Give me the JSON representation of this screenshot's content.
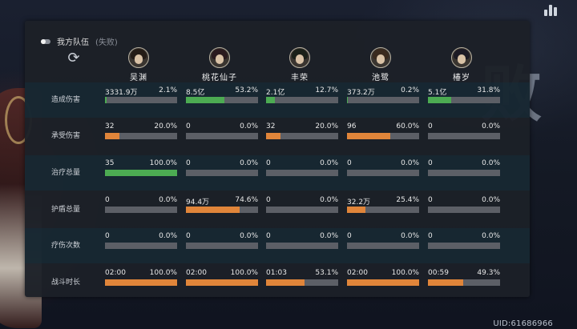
{
  "panel": {
    "title": "我方队伍",
    "result": "(失败)"
  },
  "uid": "UID:61686966",
  "background_char": "败",
  "colors": {
    "green": "#4cab52",
    "orange": "#e0853a",
    "track": "#5c5f66"
  },
  "heroes": [
    {
      "name": "吴渊",
      "icon": "hero-wuyuan-avatar"
    },
    {
      "name": "桃花仙子",
      "icon": "hero-taohuaxianzi-avatar"
    },
    {
      "name": "丰荣",
      "icon": "hero-fengrong-avatar"
    },
    {
      "name": "池鹭",
      "icon": "hero-chilu-avatar"
    },
    {
      "name": "椿岁",
      "icon": "hero-chunsui-avatar"
    }
  ],
  "rows": [
    {
      "label": "造成伤害",
      "color": "green",
      "cells": [
        {
          "value": "3331.9万",
          "percent": "2.1%",
          "fraction": 0.021
        },
        {
          "value": "8.5亿",
          "percent": "53.2%",
          "fraction": 0.532
        },
        {
          "value": "2.1亿",
          "percent": "12.7%",
          "fraction": 0.127
        },
        {
          "value": "373.2万",
          "percent": "0.2%",
          "fraction": 0.002
        },
        {
          "value": "5.1亿",
          "percent": "31.8%",
          "fraction": 0.318
        }
      ]
    },
    {
      "label": "承受伤害",
      "color": "orange",
      "cells": [
        {
          "value": "32",
          "percent": "20.0%",
          "fraction": 0.2
        },
        {
          "value": "0",
          "percent": "0.0%",
          "fraction": 0
        },
        {
          "value": "32",
          "percent": "20.0%",
          "fraction": 0.2
        },
        {
          "value": "96",
          "percent": "60.0%",
          "fraction": 0.6
        },
        {
          "value": "0",
          "percent": "0.0%",
          "fraction": 0
        }
      ]
    },
    {
      "label": "治疗总量",
      "color": "green",
      "cells": [
        {
          "value": "35",
          "percent": "100.0%",
          "fraction": 1.0
        },
        {
          "value": "0",
          "percent": "0.0%",
          "fraction": 0
        },
        {
          "value": "0",
          "percent": "0.0%",
          "fraction": 0
        },
        {
          "value": "0",
          "percent": "0.0%",
          "fraction": 0
        },
        {
          "value": "0",
          "percent": "0.0%",
          "fraction": 0
        }
      ]
    },
    {
      "label": "护盾总量",
      "color": "orange",
      "cells": [
        {
          "value": "0",
          "percent": "0.0%",
          "fraction": 0
        },
        {
          "value": "94.4万",
          "percent": "74.6%",
          "fraction": 0.746
        },
        {
          "value": "0",
          "percent": "0.0%",
          "fraction": 0
        },
        {
          "value": "32.2万",
          "percent": "25.4%",
          "fraction": 0.254
        },
        {
          "value": "0",
          "percent": "0.0%",
          "fraction": 0
        }
      ]
    },
    {
      "label": "疗伤次数",
      "color": "green",
      "cells": [
        {
          "value": "0",
          "percent": "0.0%",
          "fraction": 0
        },
        {
          "value": "0",
          "percent": "0.0%",
          "fraction": 0
        },
        {
          "value": "0",
          "percent": "0.0%",
          "fraction": 0
        },
        {
          "value": "0",
          "percent": "0.0%",
          "fraction": 0
        },
        {
          "value": "0",
          "percent": "0.0%",
          "fraction": 0
        }
      ]
    },
    {
      "label": "战斗时长",
      "color": "orange",
      "cells": [
        {
          "value": "02:00",
          "percent": "100.0%",
          "fraction": 1.0
        },
        {
          "value": "02:00",
          "percent": "100.0%",
          "fraction": 1.0
        },
        {
          "value": "01:03",
          "percent": "53.1%",
          "fraction": 0.531
        },
        {
          "value": "02:00",
          "percent": "100.0%",
          "fraction": 1.0
        },
        {
          "value": "00:59",
          "percent": "49.3%",
          "fraction": 0.493
        }
      ]
    }
  ]
}
